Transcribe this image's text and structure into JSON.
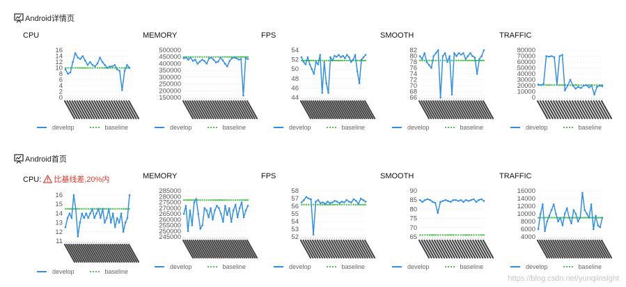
{
  "sections": [
    {
      "title": "Android详情页"
    },
    {
      "title": "Android首页",
      "warning": "比基线差,20%内"
    }
  ],
  "legend": {
    "develop": "develop",
    "baseline": "baseline"
  },
  "colors": {
    "develop": "#2f8fe8",
    "baseline": "#4fc24f",
    "grid": "#e2e2e2",
    "axis_text": "#555555",
    "warning": "#e8362a"
  },
  "watermark": "https://blog.csdn.net/yunqiinsight",
  "chart_data": [
    {
      "title": "CPU",
      "type": "line",
      "ylim": [
        0,
        16
      ],
      "yticks": [
        0,
        2,
        4,
        6,
        8,
        10,
        12,
        14,
        16
      ],
      "baseline": 10,
      "series": [
        {
          "name": "develop",
          "values": [
            9.5,
            8,
            8.5,
            12,
            15,
            13.5,
            13,
            14,
            12.5,
            11,
            12,
            11,
            10.5,
            11.5,
            13.5,
            12,
            11,
            10,
            10.5,
            10.5,
            11,
            9.5,
            9,
            2.5,
            9,
            11,
            10
          ]
        },
        {
          "name": "baseline",
          "values": [
            10
          ]
        }
      ]
    },
    {
      "title": "MEMORY",
      "type": "line",
      "ylim": [
        150000,
        500000
      ],
      "yticks": [
        150000,
        200000,
        250000,
        300000,
        350000,
        400000,
        450000,
        500000
      ],
      "baseline": 450000,
      "series": [
        {
          "name": "develop",
          "values": [
            440000,
            445000,
            430000,
            445000,
            420000,
            430000,
            400000,
            415000,
            430000,
            420000,
            400000,
            440000,
            445000,
            430000,
            410000,
            415000,
            445000,
            425000,
            400000,
            380000,
            420000,
            440000,
            445000,
            440000,
            430000,
            435000,
            165000,
            440000,
            435000
          ]
        },
        {
          "name": "baseline",
          "values": [
            450000
          ]
        }
      ]
    },
    {
      "title": "FPS",
      "type": "line",
      "ylim": [
        44,
        54
      ],
      "yticks": [
        44,
        46,
        48,
        50,
        52,
        54
      ],
      "baseline": 51.8,
      "series": [
        {
          "name": "develop",
          "values": [
            52.5,
            51.5,
            51,
            52.5,
            51,
            50,
            49,
            51.5,
            51,
            53,
            45,
            51.5,
            47,
            45,
            52.5,
            51.8,
            52.8,
            52.6,
            53,
            52.5,
            52.8,
            52.3,
            53,
            52.5,
            51.5,
            52,
            53,
            49.5,
            47,
            52,
            52.5,
            53
          ]
        },
        {
          "name": "baseline",
          "values": [
            51.8
          ]
        }
      ]
    },
    {
      "title": "SMOOTH",
      "type": "line",
      "ylim": [
        66,
        82
      ],
      "yticks": [
        66,
        68,
        70,
        72,
        74,
        76,
        78,
        80,
        82
      ],
      "baseline": 78.5,
      "series": [
        {
          "name": "develop",
          "values": [
            80,
            79,
            81,
            78,
            77,
            76,
            80,
            81,
            82,
            66,
            80,
            81,
            78,
            80,
            67,
            81,
            80,
            81,
            80.5,
            81,
            79,
            80,
            81,
            80,
            79.5,
            74,
            79,
            80,
            82
          ]
        },
        {
          "name": "baseline",
          "values": [
            78.5
          ]
        }
      ]
    },
    {
      "title": "TRAFFIC",
      "type": "line",
      "ylim": [
        0,
        80000
      ],
      "yticks": [
        0,
        10000,
        20000,
        30000,
        40000,
        50000,
        60000,
        70000,
        80000
      ],
      "baseline": 21000,
      "series": [
        {
          "name": "develop",
          "values": [
            22000,
            21000,
            23000,
            70000,
            69000,
            70000,
            68000,
            22000,
            70000,
            72000,
            12000,
            20000,
            30000,
            20000,
            15000,
            18000,
            16000,
            20000,
            21000,
            17000,
            20000,
            5000,
            18000,
            20000,
            19000
          ]
        },
        {
          "name": "baseline",
          "values": [
            21000
          ]
        }
      ]
    },
    {
      "title": "CPU",
      "type": "line",
      "ylim": [
        11,
        16
      ],
      "yticks": [
        11,
        12,
        13,
        14,
        15,
        16
      ],
      "baseline": 14.5,
      "series": [
        {
          "name": "develop",
          "values": [
            12.5,
            13.5,
            14,
            13.5,
            16,
            14.5,
            11.5,
            13,
            14,
            13.5,
            14,
            13.5,
            14,
            14.5,
            13.5,
            14,
            14.5,
            13.5,
            14.5,
            13,
            13.5,
            14.5,
            13,
            14,
            12.5,
            13.5,
            13,
            14,
            12,
            13,
            13.5,
            16
          ]
        },
        {
          "name": "baseline",
          "values": [
            14.5
          ]
        }
      ]
    },
    {
      "title": "MEMORY",
      "type": "line",
      "ylim": [
        245000,
        285000
      ],
      "yticks": [
        245000,
        250000,
        255000,
        260000,
        265000,
        270000,
        275000,
        280000,
        285000
      ],
      "baseline": 277000,
      "series": [
        {
          "name": "develop",
          "values": [
            265000,
            272000,
            250000,
            268000,
            255000,
            275000,
            278000,
            265000,
            252000,
            255000,
            270000,
            268000,
            262000,
            270000,
            260000,
            268000,
            272000,
            270000,
            265000,
            258000,
            272000,
            264000,
            270000,
            258000,
            268000,
            273000,
            262000,
            270000,
            275000,
            262000,
            268000,
            272000
          ]
        },
        {
          "name": "baseline",
          "values": [
            277000
          ]
        }
      ]
    },
    {
      "title": "FPS",
      "type": "line",
      "ylim": [
        52,
        58
      ],
      "yticks": [
        52,
        53,
        54,
        55,
        56,
        57,
        58
      ],
      "baseline": 56.2,
      "series": [
        {
          "name": "develop",
          "values": [
            56.5,
            56.8,
            57.2,
            57,
            56.9,
            52.3,
            56.6,
            56.8,
            56.4,
            56.5,
            56.3,
            56.6,
            56.4,
            56.5,
            56.7,
            56.6,
            56.4,
            56.6,
            56.5,
            56.8,
            56.6,
            56.5,
            56.9,
            56.7,
            56.3,
            57,
            56.8,
            56.6
          ]
        },
        {
          "name": "baseline",
          "values": [
            56.2
          ]
        }
      ]
    },
    {
      "title": "SMOOTH",
      "type": "line",
      "ylim": [
        65,
        90
      ],
      "yticks": [
        65,
        70,
        75,
        80,
        85,
        90
      ],
      "baseline": 66,
      "series": [
        {
          "name": "develop",
          "values": [
            85,
            84,
            85,
            85.5,
            85,
            84,
            83.5,
            78,
            84,
            84.5,
            85,
            84.5,
            84,
            85,
            85,
            84.5,
            85,
            84,
            85,
            84.5,
            85,
            85.5,
            84,
            85,
            85.5,
            84.5
          ]
        },
        {
          "name": "baseline",
          "values": [
            66
          ]
        }
      ]
    },
    {
      "title": "TRAFFIC",
      "type": "line",
      "ylim": [
        4000,
        16000
      ],
      "yticks": [
        4000,
        6000,
        8000,
        10000,
        12000,
        14000,
        16000
      ],
      "baseline": 9000,
      "series": [
        {
          "name": "develop",
          "values": [
            6000,
            10000,
            12500,
            5500,
            8000,
            9500,
            11000,
            12500,
            10000,
            8000,
            9000,
            7000,
            10000,
            11500,
            9000,
            7500,
            11000,
            10000,
            8000,
            9000,
            15500,
            11000,
            10000,
            9000,
            12500,
            6000,
            9500,
            7000,
            6500,
            9000
          ]
        },
        {
          "name": "baseline",
          "values": [
            9000
          ]
        }
      ]
    }
  ]
}
